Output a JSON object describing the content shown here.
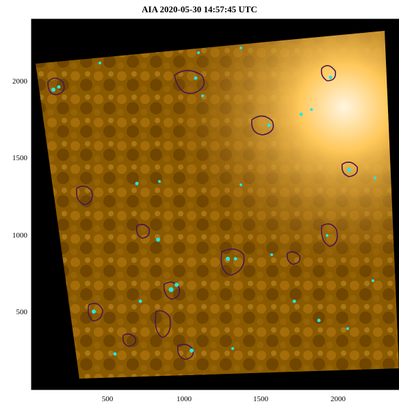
{
  "figure": {
    "title": "AIA 2020-05-30 14:57:45 UTC",
    "x_ticks": [
      "500",
      "1000",
      "1500",
      "2000"
    ],
    "y_ticks": [
      "2000",
      "1500",
      "1000",
      "500"
    ],
    "colors": {
      "background": "#000000",
      "image_base": "#7a4a00",
      "image_bright": "#ffd27a",
      "contour": "#4a1552",
      "points": "#27e6e6"
    }
  }
}
